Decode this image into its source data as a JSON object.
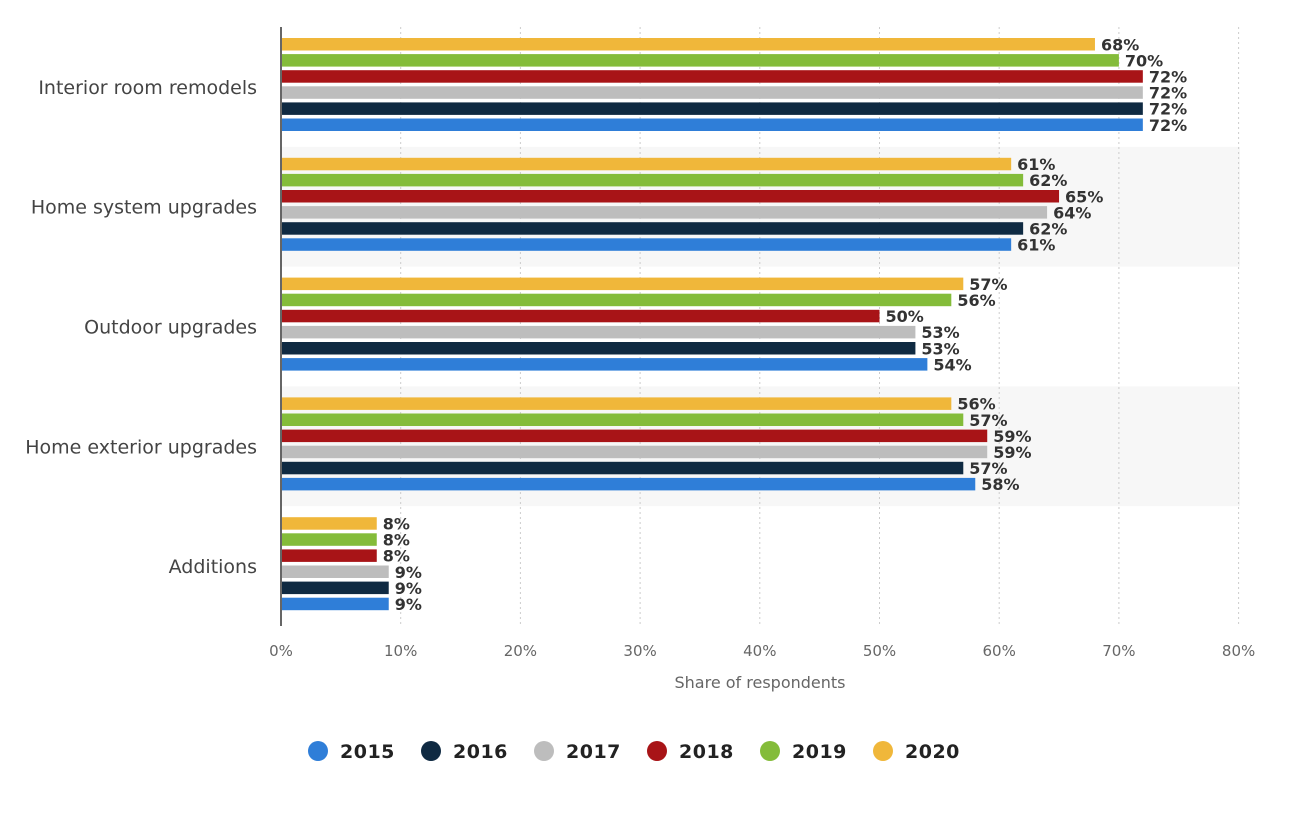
{
  "chart_data": {
    "type": "bar",
    "orientation": "horizontal",
    "categories": [
      "Interior room remodels",
      "Home system upgrades",
      "Outdoor upgrades",
      "Home exterior upgrades",
      "Additions"
    ],
    "series": [
      {
        "name": "2020",
        "color": "#F0B73A",
        "values": [
          68,
          61,
          57,
          56,
          8
        ]
      },
      {
        "name": "2019",
        "color": "#84BC3A",
        "values": [
          70,
          62,
          56,
          57,
          8
        ]
      },
      {
        "name": "2018",
        "color": "#A81417",
        "values": [
          72,
          65,
          50,
          59,
          8
        ]
      },
      {
        "name": "2017",
        "color": "#BDBDBD",
        "values": [
          72,
          64,
          53,
          59,
          9
        ]
      },
      {
        "name": "2016",
        "color": "#0F2A42",
        "values": [
          72,
          62,
          53,
          57,
          9
        ]
      },
      {
        "name": "2015",
        "color": "#2F7ED8",
        "values": [
          72,
          61,
          54,
          58,
          9
        ]
      }
    ],
    "legend_order": [
      "2015",
      "2016",
      "2017",
      "2018",
      "2019",
      "2020"
    ],
    "value_suffix": "%",
    "xlabel": "Share of respondents",
    "ylabel": "",
    "xlim": [
      0,
      80
    ],
    "xticks": [
      "0%",
      "10%",
      "20%",
      "30%",
      "40%",
      "50%",
      "60%",
      "70%",
      "80%"
    ],
    "grid": true,
    "legend_position": "bottom-center"
  }
}
